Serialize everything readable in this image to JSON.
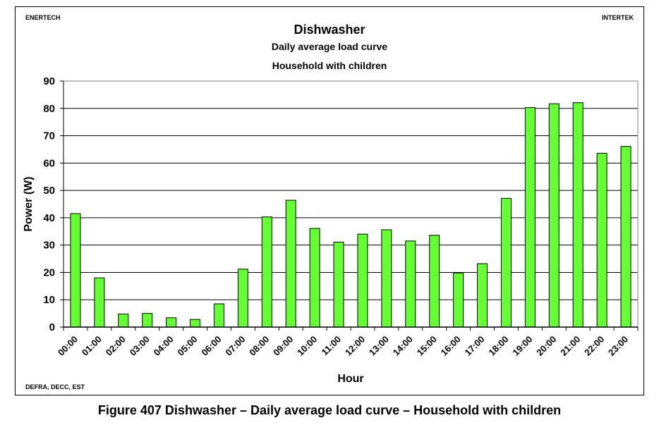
{
  "header": {
    "left_label": "ENERTECH",
    "right_label": "INTERTEK",
    "footer_label": "DEFRA, DECC, EST"
  },
  "caption": "Figure 407 Dishwasher – Daily average load curve – Household with children",
  "chart_data": {
    "type": "bar",
    "title": "Dishwasher",
    "subtitle_1": "Daily average load curve",
    "subtitle_2": "Household with children",
    "xlabel": "Hour",
    "ylabel": "Power (W)",
    "ylim": [
      0,
      90
    ],
    "yticks": [
      0,
      10,
      20,
      30,
      40,
      50,
      60,
      70,
      80,
      90
    ],
    "grid": true,
    "legend": "none",
    "bar_color": "#66ff33",
    "categories": [
      "00:00",
      "01:00",
      "02:00",
      "03:00",
      "04:00",
      "05:00",
      "06:00",
      "07:00",
      "08:00",
      "09:00",
      "10:00",
      "11:00",
      "12:00",
      "13:00",
      "14:00",
      "15:00",
      "16:00",
      "17:00",
      "18:00",
      "19:00",
      "20:00",
      "21:00",
      "22:00",
      "23:00"
    ],
    "values": [
      41.5,
      18,
      4.8,
      5,
      3.4,
      2.8,
      8.5,
      21.2,
      40.3,
      46.4,
      36.1,
      31.1,
      34,
      35.6,
      31.5,
      33.6,
      19.8,
      23.2,
      47.1,
      80.3,
      81.7,
      82.1,
      63.6,
      66.1
    ]
  }
}
